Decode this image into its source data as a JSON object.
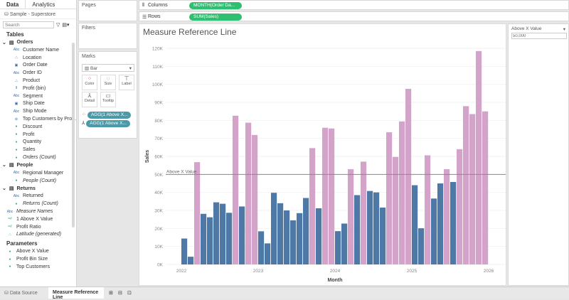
{
  "left_panel": {
    "tabs": [
      "Data",
      "Analytics"
    ],
    "datasource": "Sample - Superstore",
    "search_placeholder": "Search",
    "tables_label": "Tables",
    "groups": [
      {
        "name": "Orders",
        "fields": [
          {
            "label": "Customer Name",
            "type": "Abc"
          },
          {
            "label": "Location",
            "type": "geo"
          },
          {
            "label": "Order Date",
            "type": "date"
          },
          {
            "label": "Order ID",
            "type": "Abc"
          },
          {
            "label": "Product",
            "type": "hier"
          },
          {
            "label": "Profit (bin)",
            "type": "bin"
          },
          {
            "label": "Segment",
            "type": "Abc"
          },
          {
            "label": "Ship Date",
            "type": "date"
          },
          {
            "label": "Ship Mode",
            "type": "Abc"
          },
          {
            "label": "Top Customers by Pro...",
            "type": "set"
          },
          {
            "label": "Discount",
            "type": "measure"
          },
          {
            "label": "Profit",
            "type": "measure"
          },
          {
            "label": "Quantity",
            "type": "measure"
          },
          {
            "label": "Sales",
            "type": "measure"
          },
          {
            "label": "Orders (Count)",
            "type": "measure",
            "italic": true
          }
        ]
      },
      {
        "name": "People",
        "fields": [
          {
            "label": "Regional Manager",
            "type": "Abc"
          },
          {
            "label": "People (Count)",
            "type": "measure",
            "italic": true
          }
        ]
      },
      {
        "name": "Returns",
        "fields": [
          {
            "label": "Returned",
            "type": "Abc"
          },
          {
            "label": "Returns (Count)",
            "type": "measure",
            "italic": true
          }
        ]
      }
    ],
    "extra_fields": [
      {
        "label": "Measure Names",
        "type": "Abc",
        "italic": true
      },
      {
        "label": "1 Above X Value",
        "type": "calc"
      },
      {
        "label": "Profit Ratio",
        "type": "calc"
      },
      {
        "label": "Latitude (generated)",
        "type": "geo",
        "italic": true
      }
    ],
    "parameters_label": "Parameters",
    "parameters": [
      "Above X Value",
      "Profit Bin Size",
      "Top Customers"
    ]
  },
  "shelves": {
    "pages": "Pages",
    "filters": "Filters",
    "columns_label": "Columns",
    "columns_pill": "MONTH(Order Da...",
    "rows_label": "Rows",
    "rows_pill": "SUM(Sales)"
  },
  "marks": {
    "title": "Marks",
    "type": "Bar",
    "buttons": [
      "Color",
      "Size",
      "Label",
      "Detail",
      "Tooltip"
    ],
    "pills": [
      "AGG(1 Above X...",
      "AGG(1 Above X..."
    ]
  },
  "parameter_control": {
    "title": "Above X Value",
    "value": "50,000"
  },
  "chart_data": {
    "type": "bar",
    "title": "Measure Reference Line",
    "xlabel": "Month",
    "ylabel": "Sales",
    "ylim": [
      0,
      120000
    ],
    "yticks": [
      "0K",
      "10K",
      "20K",
      "30K",
      "40K",
      "50K",
      "60K",
      "70K",
      "80K",
      "90K",
      "100K",
      "110K",
      "120K"
    ],
    "xticks": [
      "2022",
      "2023",
      "2024",
      "2025",
      "2026"
    ],
    "reference_line": {
      "label": "Above X Value",
      "value": 50000
    },
    "colors": {
      "below": "#4e79a7",
      "above": "#d4a3c9"
    },
    "x_start": "2022-01",
    "x_end": "2025-12",
    "values": [
      14400,
      4300,
      56800,
      28100,
      26200,
      34500,
      33700,
      28700,
      82600,
      32200,
      78700,
      71900,
      18400,
      11700,
      39800,
      34000,
      30000,
      24500,
      28500,
      36900,
      64600,
      31200,
      75900,
      75500,
      18500,
      22700,
      52900,
      38500,
      57100,
      40800,
      40000,
      31600,
      73400,
      59700,
      79400,
      97500,
      44000,
      20100,
      60600,
      36600,
      45000,
      52900,
      45800,
      64000,
      87900,
      83500,
      118500,
      85000
    ]
  },
  "bottom_tabs": {
    "data_source": "Data Source",
    "sheet": "Measure Reference Line"
  }
}
